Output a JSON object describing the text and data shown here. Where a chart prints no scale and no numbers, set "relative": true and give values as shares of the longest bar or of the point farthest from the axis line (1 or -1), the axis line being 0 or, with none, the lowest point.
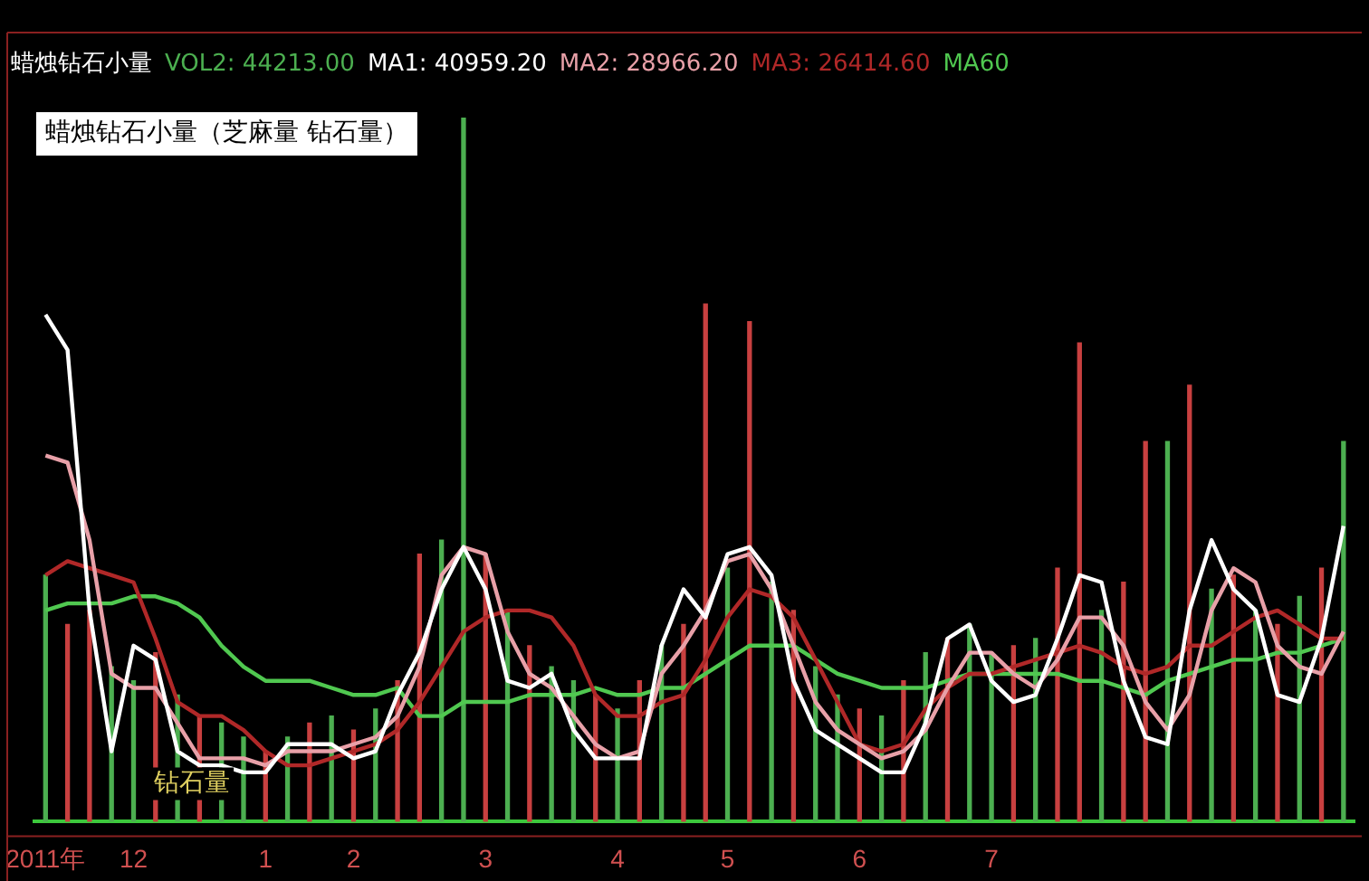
{
  "chart_data": {
    "type": "bar",
    "title": "蜡烛钻石小量",
    "relative": true,
    "legend": "top left",
    "grid": false,
    "marker": "none",
    "line_style": "solid",
    "annotations": [
      "蜡烛钻石小量（芝麻量 钻石量）",
      "钻石量"
    ],
    "categories": [
      "2011年",
      null,
      null,
      null,
      "12",
      null,
      null,
      null,
      null,
      null,
      "1",
      null,
      null,
      null,
      "2",
      null,
      null,
      null,
      null,
      null,
      "3",
      null,
      null,
      null,
      null,
      null,
      "4",
      null,
      null,
      null,
      null,
      "5",
      null,
      null,
      null,
      null,
      null,
      "6",
      null,
      null,
      null,
      null,
      null,
      "7",
      null,
      null,
      null,
      null,
      null,
      null,
      null,
      null,
      null,
      null,
      null,
      null,
      null,
      null,
      null,
      null
    ],
    "series": [
      {
        "name": "VOL2: 44213.00",
        "color": "#4caf50",
        "values": [
          0.35,
          0.28,
          0.3,
          0.22,
          0.2,
          0.24,
          0.18,
          0.15,
          0.14,
          0.12,
          0.1,
          0.12,
          0.14,
          0.15,
          0.13,
          0.16,
          0.2,
          0.38,
          0.4,
          1.0,
          0.38,
          0.3,
          0.25,
          0.22,
          0.2,
          0.18,
          0.16,
          0.2,
          0.25,
          0.28,
          0.735,
          0.36,
          0.71,
          0.34,
          0.3,
          0.22,
          0.18,
          0.16,
          0.15,
          0.2,
          0.24,
          0.26,
          0.28,
          0.24,
          0.25,
          0.26,
          0.36,
          0.68,
          0.3,
          0.34,
          0.54,
          0.54,
          0.62,
          0.33,
          0.35,
          0.3,
          0.28,
          0.32,
          0.36,
          0.54
        ],
        "colors": [
          "#4caf50",
          "#c84040",
          "#c84040",
          "#4caf50",
          "#4caf50",
          "#c84040",
          "#4caf50",
          "#c84040",
          "#4caf50",
          "#4caf50",
          "#c84040",
          "#4caf50",
          "#c84040",
          "#4caf50",
          "#c84040",
          "#4caf50",
          "#c84040",
          "#c84040",
          "#4caf50",
          "#4caf50",
          "#c84040",
          "#4caf50",
          "#c84040",
          "#4caf50",
          "#4caf50",
          "#c84040",
          "#4caf50",
          "#c84040",
          "#4caf50",
          "#c84040",
          "#c84040",
          "#4caf50",
          "#c84040",
          "#4caf50",
          "#c84040",
          "#4caf50",
          "#4caf50",
          "#c84040",
          "#4caf50",
          "#c84040",
          "#4caf50",
          "#c84040",
          "#4caf50",
          "#4caf50",
          "#c84040",
          "#4caf50",
          "#c84040",
          "#c84040",
          "#4caf50",
          "#c84040",
          "#c84040",
          "#4caf50",
          "#c84040",
          "#4caf50",
          "#c84040",
          "#4caf50",
          "#c84040",
          "#4caf50",
          "#c84040",
          "#4caf50"
        ]
      },
      {
        "name": "MA1: 40959.20",
        "type": "line",
        "color": "#ffffff",
        "values": [
          0.72,
          0.67,
          0.3,
          0.1,
          0.25,
          0.23,
          0.1,
          0.08,
          0.08,
          0.07,
          0.07,
          0.11,
          0.11,
          0.11,
          0.09,
          0.1,
          0.18,
          0.24,
          0.33,
          0.39,
          0.33,
          0.2,
          0.19,
          0.21,
          0.13,
          0.09,
          0.09,
          0.09,
          0.25,
          0.33,
          0.29,
          0.38,
          0.39,
          0.35,
          0.2,
          0.13,
          0.11,
          0.09,
          0.07,
          0.07,
          0.14,
          0.26,
          0.28,
          0.2,
          0.17,
          0.18,
          0.26,
          0.35,
          0.34,
          0.2,
          0.12,
          0.11,
          0.3,
          0.4,
          0.33,
          0.3,
          0.18,
          0.17,
          0.26,
          0.42
        ]
      },
      {
        "name": "MA2: 28966.20",
        "type": "line",
        "color": "#e8a0a8",
        "values": [
          0.52,
          0.51,
          0.4,
          0.21,
          0.19,
          0.19,
          0.14,
          0.09,
          0.09,
          0.09,
          0.08,
          0.1,
          0.1,
          0.1,
          0.11,
          0.12,
          0.15,
          0.22,
          0.35,
          0.39,
          0.38,
          0.27,
          0.21,
          0.19,
          0.15,
          0.11,
          0.09,
          0.1,
          0.21,
          0.25,
          0.3,
          0.37,
          0.38,
          0.33,
          0.25,
          0.17,
          0.13,
          0.11,
          0.09,
          0.1,
          0.13,
          0.19,
          0.24,
          0.24,
          0.21,
          0.19,
          0.23,
          0.29,
          0.29,
          0.25,
          0.17,
          0.13,
          0.18,
          0.3,
          0.36,
          0.34,
          0.25,
          0.22,
          0.21,
          0.27
        ]
      },
      {
        "name": "MA3: 26414.60",
        "type": "line",
        "color": "#b02828",
        "values": [
          0.35,
          0.37,
          0.36,
          0.35,
          0.34,
          0.26,
          0.17,
          0.15,
          0.15,
          0.13,
          0.1,
          0.08,
          0.08,
          0.09,
          0.1,
          0.11,
          0.13,
          0.17,
          0.22,
          0.27,
          0.29,
          0.3,
          0.3,
          0.29,
          0.25,
          0.18,
          0.15,
          0.15,
          0.17,
          0.18,
          0.23,
          0.29,
          0.33,
          0.32,
          0.29,
          0.23,
          0.17,
          0.11,
          0.1,
          0.11,
          0.16,
          0.19,
          0.21,
          0.21,
          0.22,
          0.23,
          0.24,
          0.25,
          0.24,
          0.22,
          0.21,
          0.22,
          0.25,
          0.25,
          0.27,
          0.29,
          0.3,
          0.28,
          0.26,
          0.26
        ]
      },
      {
        "name": "MA60",
        "type": "line",
        "color": "#50c850",
        "values": [
          0.3,
          0.31,
          0.31,
          0.31,
          0.32,
          0.32,
          0.31,
          0.29,
          0.25,
          0.22,
          0.2,
          0.2,
          0.2,
          0.19,
          0.18,
          0.18,
          0.19,
          0.15,
          0.15,
          0.17,
          0.17,
          0.17,
          0.18,
          0.18,
          0.18,
          0.19,
          0.18,
          0.18,
          0.19,
          0.19,
          0.21,
          0.23,
          0.25,
          0.25,
          0.25,
          0.23,
          0.21,
          0.2,
          0.19,
          0.19,
          0.19,
          0.2,
          0.21,
          0.21,
          0.21,
          0.21,
          0.21,
          0.2,
          0.2,
          0.19,
          0.18,
          0.2,
          0.21,
          0.22,
          0.23,
          0.23,
          0.24,
          0.24,
          0.25,
          0.26
        ]
      }
    ]
  }
}
